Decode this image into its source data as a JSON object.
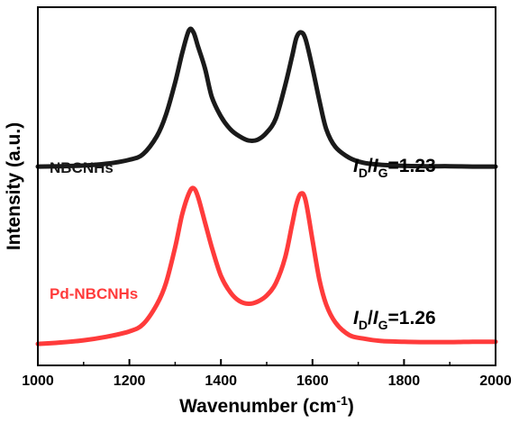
{
  "chart_data": {
    "type": "line",
    "xlabel": "Wavenumber (cm",
    "xlabel_sup": "-1",
    "xlabel_end": ")",
    "ylabel": "Intensity (a.u.)",
    "xlim": [
      1000,
      2000
    ],
    "xticks": [
      "1000",
      "1200",
      "1400",
      "1600",
      "1800",
      "2000"
    ],
    "xtick_values": [
      1000,
      1200,
      1400,
      1600,
      1800,
      2000
    ],
    "ylim": [
      0,
      1
    ],
    "y_ticks_shown": false,
    "grid": false,
    "x": [
      1000,
      1050,
      1100,
      1150,
      1200,
      1230,
      1260,
      1280,
      1300,
      1315,
      1330,
      1340,
      1350,
      1365,
      1380,
      1400,
      1420,
      1440,
      1460,
      1480,
      1500,
      1520,
      1540,
      1555,
      1565,
      1575,
      1585,
      1600,
      1615,
      1630,
      1650,
      1680,
      1710,
      1750,
      1800,
      1850,
      1900,
      1950,
      2000
    ],
    "series": [
      {
        "name": "NBCNHs",
        "color": "#1a1a1a",
        "values": [
          0.555,
          0.556,
          0.558,
          0.563,
          0.574,
          0.59,
          0.64,
          0.7,
          0.79,
          0.87,
          0.935,
          0.93,
          0.89,
          0.83,
          0.75,
          0.695,
          0.66,
          0.64,
          0.628,
          0.63,
          0.65,
          0.69,
          0.78,
          0.86,
          0.915,
          0.93,
          0.91,
          0.83,
          0.74,
          0.66,
          0.61,
          0.58,
          0.566,
          0.56,
          0.557,
          0.556,
          0.556,
          0.555,
          0.555
        ]
      },
      {
        "name": "Pd-NBCNHs",
        "color": "#ff3b3b",
        "values": [
          0.06,
          0.064,
          0.07,
          0.08,
          0.095,
          0.115,
          0.17,
          0.23,
          0.33,
          0.42,
          0.48,
          0.495,
          0.47,
          0.4,
          0.33,
          0.25,
          0.205,
          0.18,
          0.172,
          0.178,
          0.195,
          0.23,
          0.3,
          0.39,
          0.45,
          0.48,
          0.46,
          0.35,
          0.24,
          0.17,
          0.12,
          0.085,
          0.075,
          0.068,
          0.066,
          0.065,
          0.065,
          0.066,
          0.066
        ]
      }
    ],
    "annotations": [
      {
        "prefix": "I",
        "sub1": "D",
        "slash": "/",
        "mid": "I",
        "sub2": "G",
        "value": "=1.23",
        "series": "NBCNHs"
      },
      {
        "prefix": "I",
        "sub1": "D",
        "slash": "/",
        "mid": "I",
        "sub2": "G",
        "value": "=1.26",
        "series": "Pd-NBCNHs"
      }
    ]
  }
}
